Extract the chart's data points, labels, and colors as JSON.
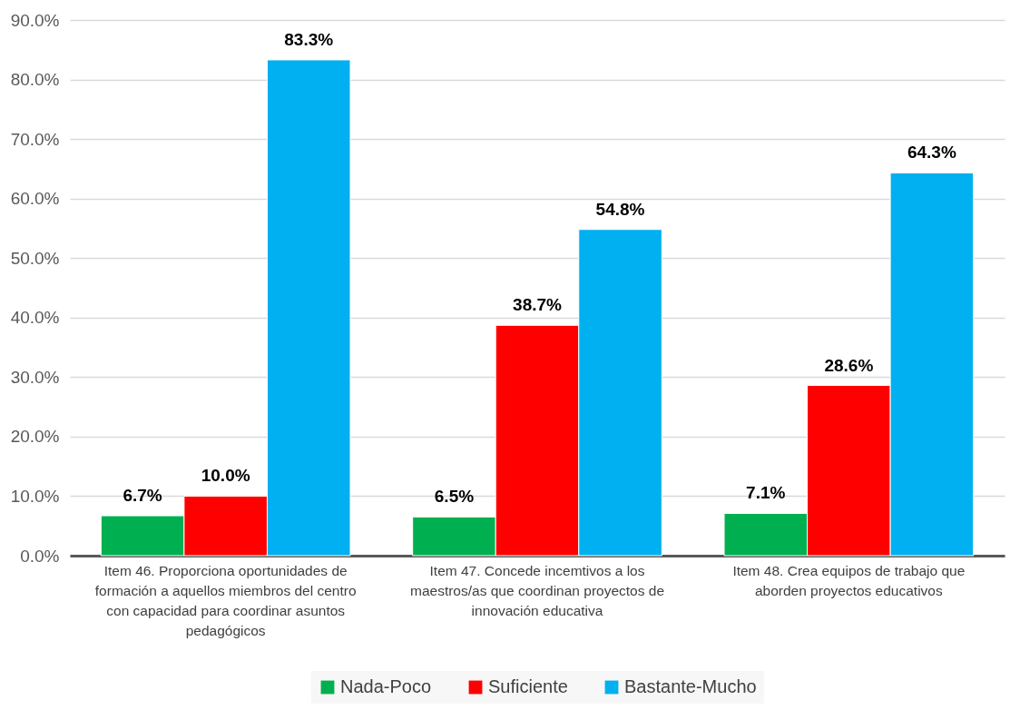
{
  "chart_data": {
    "type": "bar",
    "categories": [
      "Item 46. Proporciona oportunidades de formación a aquellos miembros del centro con capacidad para coordinar asuntos pedagógicos",
      "Item 47. Concede incemtivos a los maestros/as que coordinan proyectos de innovación educativa",
      "Item 48. Crea equipos de trabajo que aborden proyectos educativos"
    ],
    "series": [
      {
        "name": "Nada-Poco",
        "color": "#00b050",
        "values": [
          6.7,
          6.5,
          7.1
        ],
        "value_labels": [
          "6.7%",
          "6.5%",
          "7.1%"
        ]
      },
      {
        "name": "Suficiente",
        "color": "#ff0000",
        "values": [
          10.0,
          38.7,
          28.6
        ],
        "value_labels": [
          "10.0%",
          "38.7%",
          "28.6%"
        ]
      },
      {
        "name": "Bastante-Mucho",
        "color": "#00b0f0",
        "values": [
          83.3,
          54.8,
          64.3
        ],
        "value_labels": [
          "83.3%",
          "54.8%",
          "64.3%"
        ]
      }
    ],
    "ylim": [
      0,
      90
    ],
    "yticks": [
      {
        "value": 0,
        "label": "0.0%"
      },
      {
        "value": 10,
        "label": "10.0%"
      },
      {
        "value": 20,
        "label": "20.0%"
      },
      {
        "value": 30,
        "label": "30.0%"
      },
      {
        "value": 40,
        "label": "40.0%"
      },
      {
        "value": 50,
        "label": "50.0%"
      },
      {
        "value": 60,
        "label": "60.0%"
      },
      {
        "value": 70,
        "label": "70.0%"
      },
      {
        "value": 80,
        "label": "80.0%"
      },
      {
        "value": 90,
        "label": "90.0%"
      }
    ],
    "grid": true,
    "legend": "bottom"
  }
}
